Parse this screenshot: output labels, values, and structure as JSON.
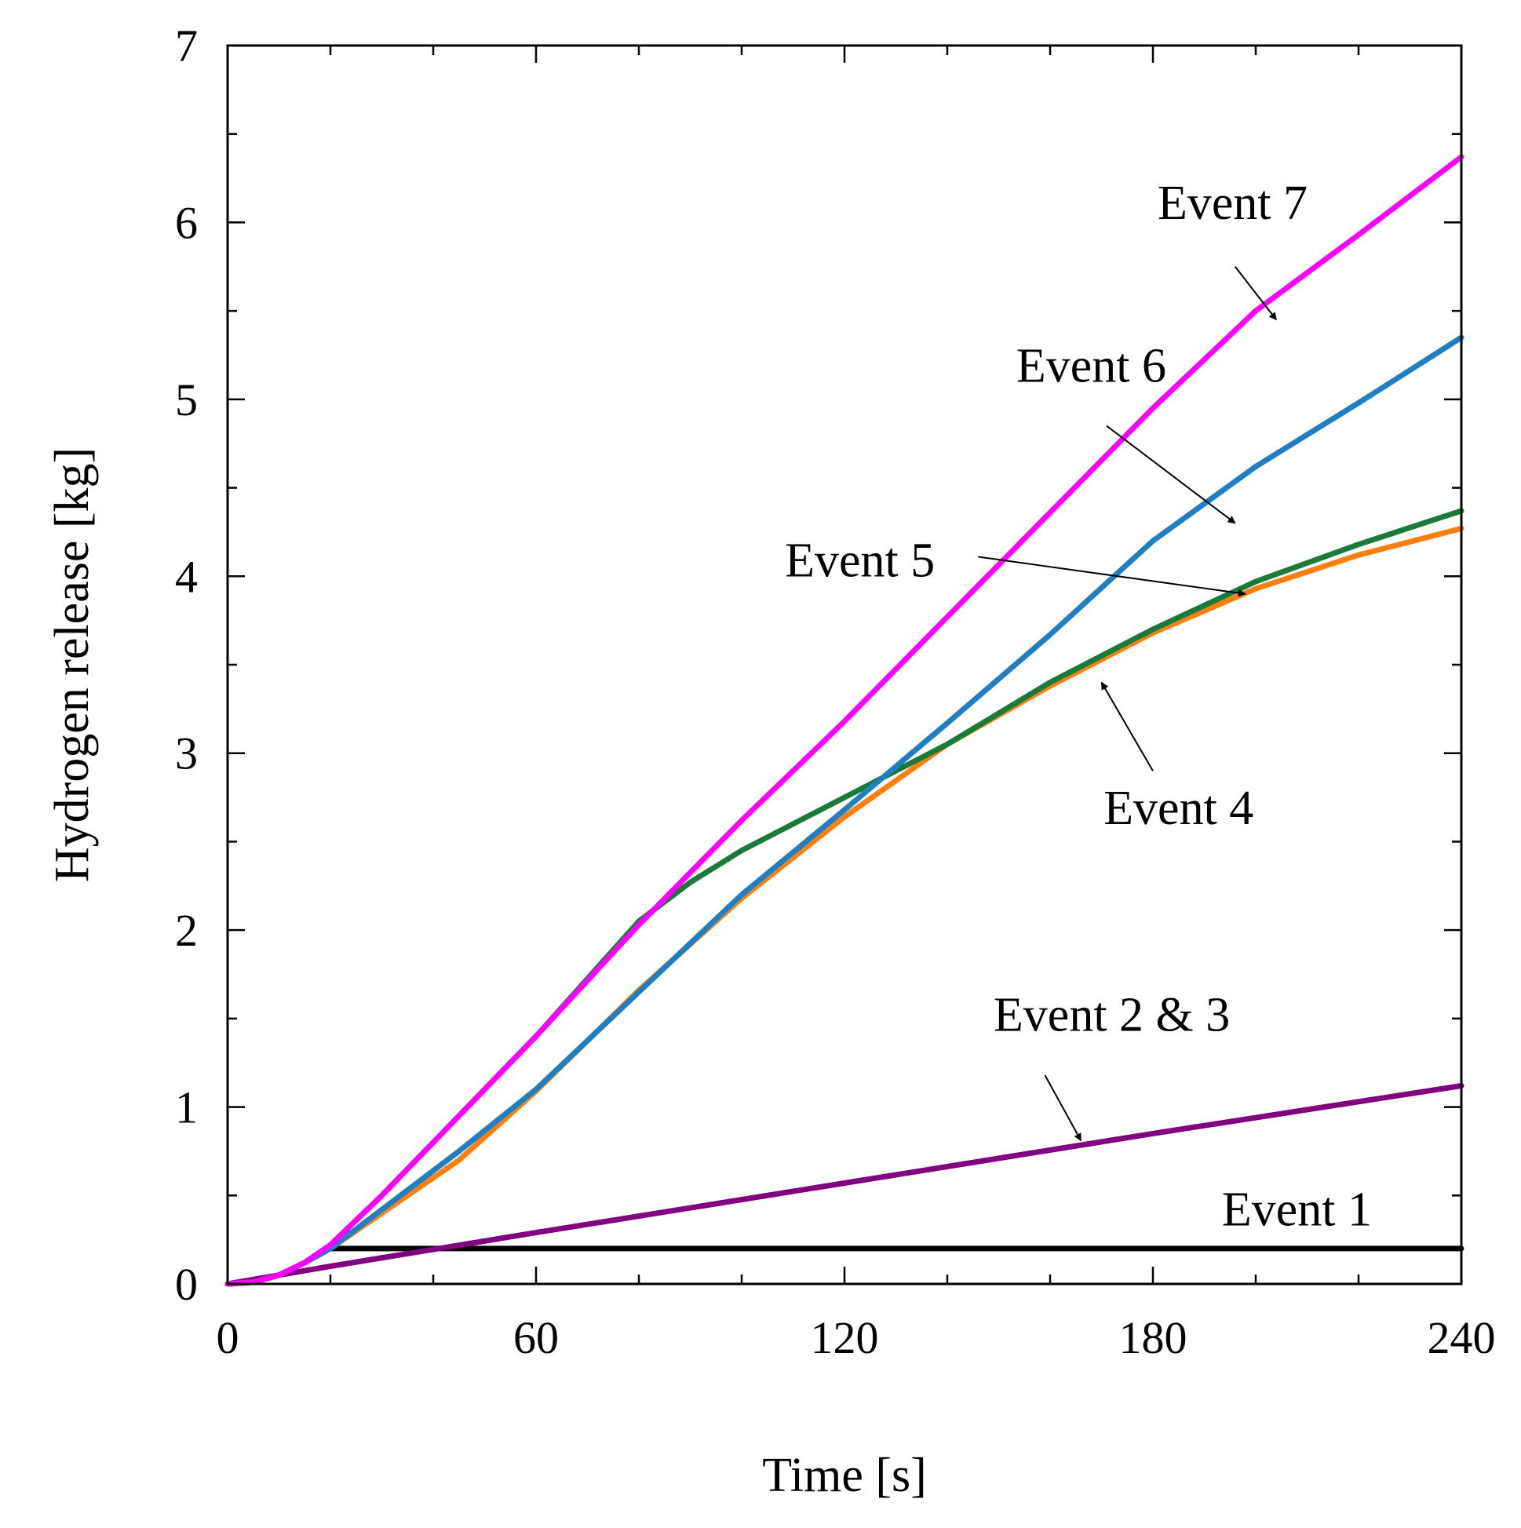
{
  "chart_data": {
    "type": "line",
    "title": "",
    "xlabel": "Time [s]",
    "ylabel": "Hydrogen release [kg]",
    "xlim": [
      0,
      240
    ],
    "ylim": [
      0,
      7
    ],
    "xticks": [
      0,
      60,
      120,
      180,
      240
    ],
    "yticks": [
      0,
      1,
      2,
      3,
      4,
      5,
      6,
      7
    ],
    "grid": false,
    "series": [
      {
        "name": "Event 1",
        "color": "#000000",
        "points": [
          [
            0,
            0
          ],
          [
            5,
            0.01
          ],
          [
            10,
            0.05
          ],
          [
            15,
            0.12
          ],
          [
            19,
            0.2
          ],
          [
            20,
            0.2
          ],
          [
            240,
            0.2
          ]
        ]
      },
      {
        "name": "Event 2 & 3",
        "color": "#800080",
        "points": [
          [
            0,
            0
          ],
          [
            20,
            0.1
          ],
          [
            60,
            0.29
          ],
          [
            120,
            0.57
          ],
          [
            180,
            0.85
          ],
          [
            240,
            1.12
          ]
        ]
      },
      {
        "name": "Event 4",
        "color": "#ff7f0e",
        "points": [
          [
            0,
            0
          ],
          [
            5,
            0.01
          ],
          [
            10,
            0.05
          ],
          [
            15,
            0.12
          ],
          [
            20,
            0.2
          ],
          [
            30,
            0.4
          ],
          [
            45,
            0.7
          ],
          [
            60,
            1.09
          ],
          [
            80,
            1.66
          ],
          [
            100,
            2.18
          ],
          [
            120,
            2.64
          ],
          [
            140,
            3.05
          ],
          [
            160,
            3.38
          ],
          [
            180,
            3.68
          ],
          [
            200,
            3.93
          ],
          [
            220,
            4.12
          ],
          [
            240,
            4.27
          ]
        ]
      },
      {
        "name": "Event 5",
        "color": "#1a7a3a",
        "points": [
          [
            0,
            0
          ],
          [
            5,
            0.01
          ],
          [
            10,
            0.05
          ],
          [
            15,
            0.12
          ],
          [
            20,
            0.22
          ],
          [
            30,
            0.5
          ],
          [
            45,
            0.95
          ],
          [
            60,
            1.4
          ],
          [
            80,
            2.05
          ],
          [
            90,
            2.27
          ],
          [
            100,
            2.45
          ],
          [
            120,
            2.75
          ],
          [
            140,
            3.05
          ],
          [
            160,
            3.4
          ],
          [
            180,
            3.7
          ],
          [
            200,
            3.97
          ],
          [
            220,
            4.18
          ],
          [
            240,
            4.37
          ]
        ]
      },
      {
        "name": "Event 6",
        "color": "#1f7fc0",
        "points": [
          [
            0,
            0
          ],
          [
            5,
            0.01
          ],
          [
            10,
            0.05
          ],
          [
            15,
            0.12
          ],
          [
            20,
            0.2
          ],
          [
            30,
            0.42
          ],
          [
            45,
            0.75
          ],
          [
            60,
            1.1
          ],
          [
            80,
            1.65
          ],
          [
            100,
            2.2
          ],
          [
            120,
            2.68
          ],
          [
            140,
            3.17
          ],
          [
            160,
            3.67
          ],
          [
            180,
            4.2
          ],
          [
            200,
            4.62
          ],
          [
            220,
            4.98
          ],
          [
            240,
            5.35
          ]
        ]
      },
      {
        "name": "Event 7",
        "color": "#ff00ff",
        "points": [
          [
            0,
            0
          ],
          [
            5,
            0.01
          ],
          [
            10,
            0.05
          ],
          [
            15,
            0.12
          ],
          [
            20,
            0.22
          ],
          [
            30,
            0.5
          ],
          [
            45,
            0.95
          ],
          [
            60,
            1.4
          ],
          [
            80,
            2.03
          ],
          [
            100,
            2.62
          ],
          [
            120,
            3.18
          ],
          [
            140,
            3.77
          ],
          [
            160,
            4.36
          ],
          [
            180,
            4.95
          ],
          [
            200,
            5.5
          ],
          [
            220,
            5.93
          ],
          [
            240,
            6.37
          ]
        ]
      }
    ],
    "annotations": [
      {
        "text": "Event 7",
        "x": 195.5,
        "y": 6.02,
        "anchor": "middle",
        "arrow_from": [
          196,
          5.75
        ],
        "arrow_to": [
          204,
          5.45
        ]
      },
      {
        "text": "Event 6",
        "x": 168,
        "y": 5.1,
        "anchor": "middle",
        "arrow_from": [
          171,
          4.85
        ],
        "arrow_to": [
          196,
          4.3
        ]
      },
      {
        "text": "Event 5",
        "x": 123,
        "y": 4.0,
        "anchor": "middle",
        "arrow_from": [
          146,
          4.11
        ],
        "arrow_to": [
          198,
          3.9
        ]
      },
      {
        "text": "Event 4",
        "x": 185,
        "y": 2.6,
        "anchor": "middle",
        "arrow_from": [
          180,
          2.9
        ],
        "arrow_to": [
          170,
          3.4
        ]
      },
      {
        "text": "Event 2 & 3",
        "x": 172,
        "y": 1.43,
        "anchor": "middle",
        "arrow_from": [
          159,
          1.18
        ],
        "arrow_to": [
          166,
          0.81
        ]
      },
      {
        "text": "Event 1",
        "x": 208,
        "y": 0.33,
        "anchor": "middle"
      }
    ]
  }
}
